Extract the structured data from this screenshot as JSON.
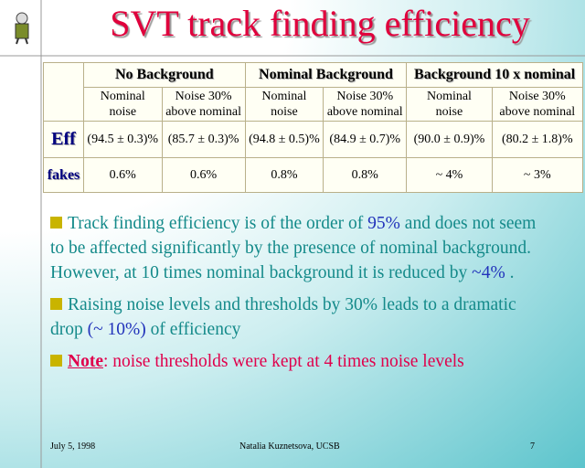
{
  "title": "SVT track finding efficiency",
  "table": {
    "groups": [
      "No Background",
      "Nominal Background",
      "Background 10 x nominal"
    ],
    "subheaders": [
      [
        "Nominal",
        "noise"
      ],
      [
        "Noise 30%",
        "above nominal"
      ],
      [
        "Nominal",
        "noise"
      ],
      [
        "Noise 30%",
        "above nominal"
      ],
      [
        "Nominal",
        "noise"
      ],
      [
        "Noise 30%",
        "above nominal"
      ]
    ],
    "rows": [
      {
        "label": "Eff",
        "cells": [
          "(94.5 ± 0.3)%",
          "(85.7 ± 0.3)%",
          "(94.8 ± 0.5)%",
          "(84.9 ± 0.7)%",
          "(90.0 ± 0.9)%",
          "(80.2 ± 1.8)%"
        ]
      },
      {
        "label": "fakes",
        "cells": [
          "0.6%",
          "0.6%",
          "0.8%",
          "0.8%",
          "~ 4%",
          "~ 3%"
        ]
      }
    ]
  },
  "bullets": [
    [
      "Track finding efficiency is of the order of ",
      "95%",
      " and does not seem to be affected significantly by the presence of nominal background.  However, at 10 times nominal background it is reduced  by ",
      "~4%",
      " ."
    ],
    [
      "Raising noise levels and thresholds by 30% leads to a dramatic drop ",
      "(~ 10%)",
      " of efficiency"
    ],
    [
      "Note",
      ": noise thresholds were kept at 4 times noise levels"
    ]
  ],
  "footer": {
    "date": "July 5, 1998",
    "author": "Natalia Kuznetsova, UCSB",
    "page": "7"
  }
}
